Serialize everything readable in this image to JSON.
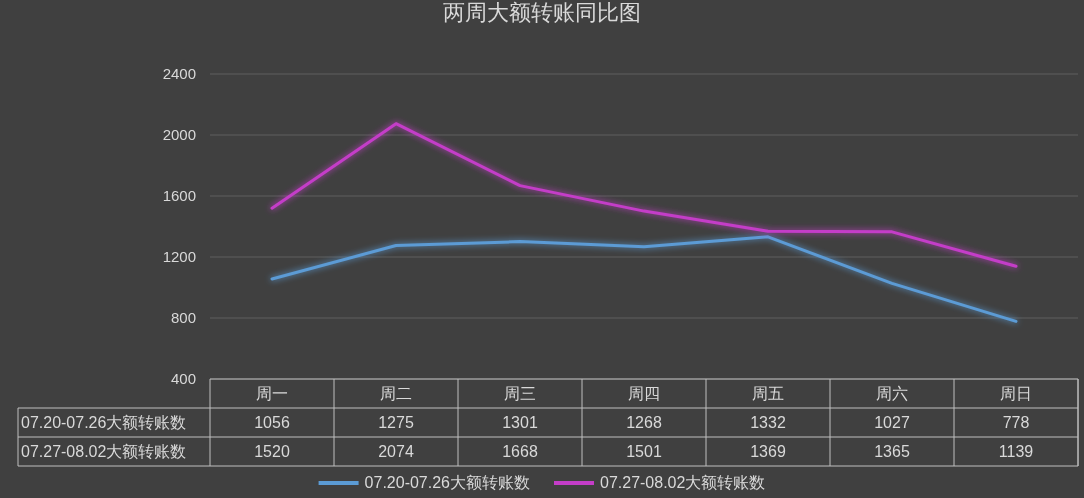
{
  "chart_data": {
    "type": "line",
    "title": "两周大额转账同比图",
    "categories": [
      "周一",
      "周二",
      "周三",
      "周四",
      "周五",
      "周六",
      "周日"
    ],
    "series": [
      {
        "name": "07.20-07.26大额转账数",
        "color": "#5b9bd5",
        "values": [
          1056,
          1275,
          1301,
          1268,
          1332,
          1027,
          778
        ]
      },
      {
        "name": "07.27-08.02大额转账数",
        "color": "#c43dc8",
        "values": [
          1520,
          2074,
          1668,
          1501,
          1369,
          1365,
          1139
        ]
      }
    ],
    "ylim": [
      400,
      2400
    ],
    "yticks": [
      400,
      800,
      1200,
      1600,
      2000,
      2400
    ],
    "grid": "y",
    "legend": "bottom",
    "data_labels": true
  }
}
